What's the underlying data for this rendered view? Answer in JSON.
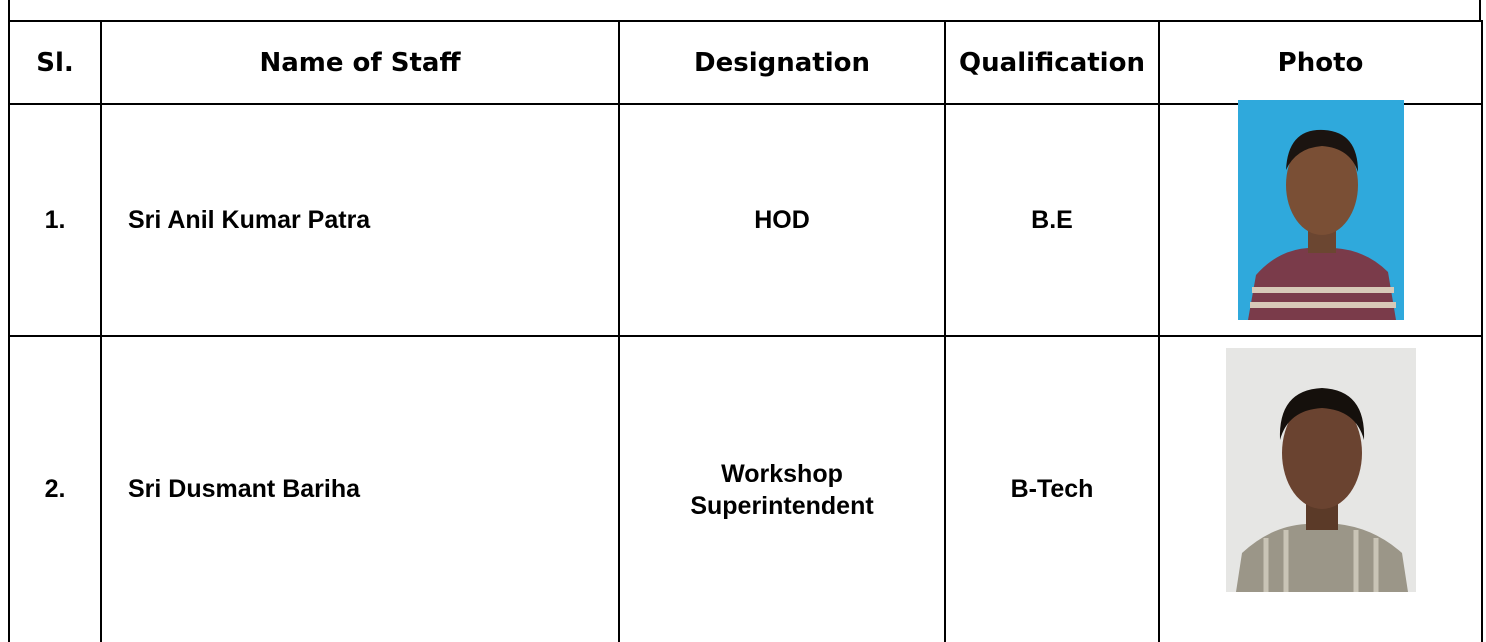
{
  "table": {
    "header": [
      "Sl.",
      "Name of Staff",
      "Designation",
      "Qualification",
      "Photo"
    ],
    "rows": [
      [
        "1.",
        "Sri Anil Kumar Patra",
        "HOD",
        "B.E"
      ],
      [
        "2.",
        "Sri Dusmant Bariha",
        "Workshop Superintendent",
        "B-Tech"
      ]
    ]
  }
}
